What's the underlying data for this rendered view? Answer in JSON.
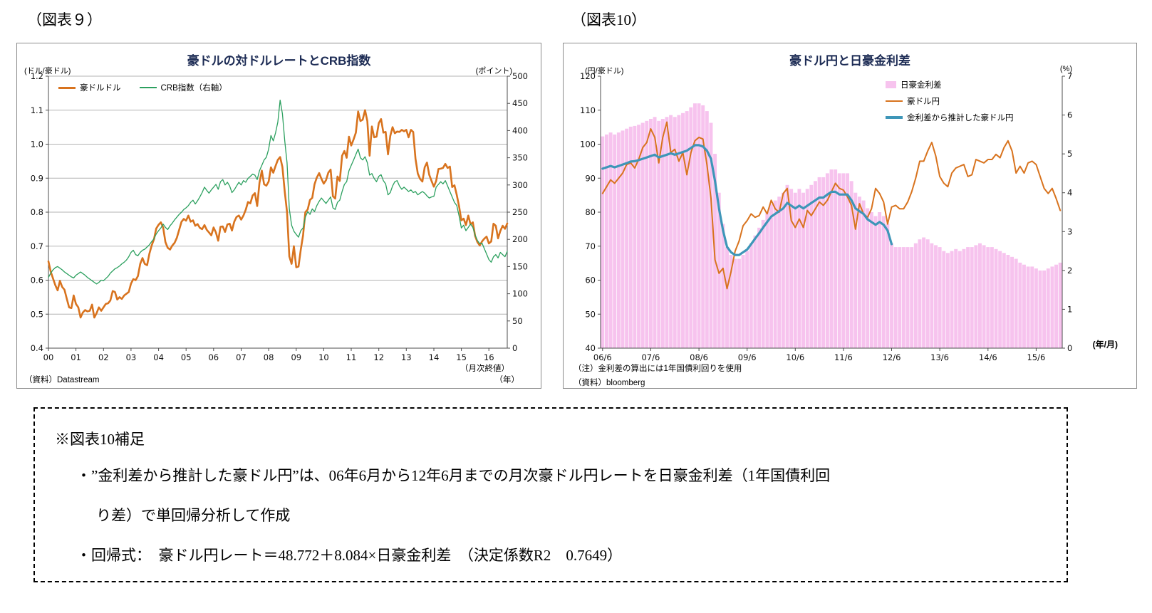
{
  "figures": [
    {
      "label": "（図表９）"
    },
    {
      "label": "（図表10）"
    }
  ],
  "notes_box": {
    "heading": "※図表10補足",
    "bullet1_line1": "・”金利差から推計した豪ドル円”は、06年6月から12年6月までの月次豪ドル円レートを日豪金利差（1年国債利回",
    "bullet1_line2": "り差）で単回帰分析して作成",
    "bullet2": "・回帰式：　豪ドル円レート＝48.772＋8.084×日豪金利差　（決定係数R2　0.7649）"
  },
  "chart_data": [
    {
      "id": "figure9",
      "type": "line",
      "title": "豪ドルの対ドルレートとCRB指数",
      "frequency": "monthly",
      "x_start": "2000/01",
      "x_end": "2016/09",
      "x_tick_labels": [
        "00",
        "01",
        "02",
        "03",
        "04",
        "05",
        "06",
        "07",
        "08",
        "09",
        "10",
        "11",
        "12",
        "13",
        "14",
        "15",
        "16"
      ],
      "x_unit_label": "（年）",
      "note": "（月次終値）",
      "source": "（資料）Datastream",
      "grid": "horizontal",
      "legend_position": "top-left-inside",
      "left_axis": {
        "label": "(ドル/豪ドル)",
        "min": 0.4,
        "max": 1.2,
        "step": 0.1
      },
      "right_axis": {
        "label": "(ポイント)",
        "min": 0,
        "max": 500,
        "step": 50
      },
      "series": [
        {
          "name": "豪ドルドル",
          "axis": "left",
          "color": "#d8731e",
          "width": 2.6,
          "values": [
            0.655,
            0.625,
            0.605,
            0.585,
            0.57,
            0.598,
            0.58,
            0.572,
            0.545,
            0.52,
            0.518,
            0.555,
            0.53,
            0.52,
            0.49,
            0.505,
            0.512,
            0.508,
            0.51,
            0.528,
            0.49,
            0.503,
            0.52,
            0.51,
            0.52,
            0.53,
            0.532,
            0.54,
            0.568,
            0.565,
            0.543,
            0.55,
            0.545,
            0.555,
            0.56,
            0.565,
            0.59,
            0.603,
            0.6,
            0.612,
            0.648,
            0.665,
            0.648,
            0.644,
            0.678,
            0.702,
            0.72,
            0.752,
            0.763,
            0.77,
            0.755,
            0.712,
            0.695,
            0.69,
            0.702,
            0.71,
            0.725,
            0.748,
            0.772,
            0.78,
            0.775,
            0.79,
            0.772,
            0.776,
            0.76,
            0.765,
            0.754,
            0.75,
            0.762,
            0.748,
            0.74,
            0.732,
            0.755,
            0.74,
            0.716,
            0.757,
            0.758,
            0.742,
            0.764,
            0.766,
            0.746,
            0.772,
            0.786,
            0.79,
            0.778,
            0.79,
            0.807,
            0.83,
            0.826,
            0.849,
            0.856,
            0.818,
            0.886,
            0.922,
            0.882,
            0.878,
            0.89,
            0.932,
            0.916,
            0.936,
            0.954,
            0.962,
            0.933,
            0.86,
            0.8,
            0.67,
            0.648,
            0.7,
            0.638,
            0.64,
            0.69,
            0.732,
            0.8,
            0.808,
            0.836,
            0.842,
            0.882,
            0.902,
            0.915,
            0.898,
            0.884,
            0.894,
            0.916,
            0.925,
            0.847,
            0.84,
            0.905,
            0.892,
            0.966,
            0.98,
            0.96,
            1.022,
            0.996,
            1.014,
            1.034,
            1.096,
            1.068,
            1.072,
            1.1,
            1.068,
            0.966,
            1.052,
            1.02,
            1.022,
            1.062,
            1.074,
            1.034,
            1.036,
            0.97,
            1.024,
            1.05,
            1.032,
            1.037,
            1.036,
            1.042,
            1.038,
            1.042,
            1.02,
            1.042,
            1.036,
            0.957,
            0.914,
            0.898,
            0.89,
            0.932,
            0.946,
            0.91,
            0.892,
            0.875,
            0.892,
            0.927,
            0.928,
            0.93,
            0.942,
            0.93,
            0.934,
            0.874,
            0.879,
            0.85,
            0.817,
            0.776,
            0.781,
            0.762,
            0.79,
            0.764,
            0.77,
            0.73,
            0.712,
            0.702,
            0.714,
            0.722,
            0.728,
            0.708,
            0.714,
            0.766,
            0.76,
            0.723,
            0.745,
            0.76,
            0.751,
            0.767
          ]
        },
        {
          "name": "CRB指数（右軸）",
          "axis": "right",
          "color": "#2ca05f",
          "width": 1.3,
          "values": [
            130,
            138,
            144,
            148,
            150,
            147,
            144,
            140,
            137,
            134,
            131,
            129,
            134,
            137,
            140,
            137,
            134,
            130,
            127,
            124,
            121,
            118,
            121,
            125,
            124,
            128,
            132,
            138,
            142,
            146,
            148,
            151,
            155,
            158,
            162,
            168,
            176,
            180,
            172,
            170,
            176,
            180,
            182,
            186,
            190,
            196,
            201,
            210,
            216,
            221,
            228,
            222,
            218,
            225,
            230,
            236,
            241,
            246,
            250,
            255,
            258,
            262,
            268,
            272,
            265,
            271,
            278,
            286,
            296,
            290,
            285,
            291,
            296,
            301,
            292,
            306,
            310,
            300,
            305,
            298,
            286,
            291,
            298,
            305,
            300,
            308,
            305,
            312,
            316,
            320,
            318,
            310,
            326,
            336,
            346,
            351,
            366,
            391,
            381,
            396,
            416,
            456,
            431,
            381,
            341,
            256,
            226,
            215,
            209,
            204,
            216,
            221,
            241,
            251,
            246,
            256,
            251,
            262,
            270,
            276,
            271,
            266,
            272,
            278,
            258,
            255,
            268,
            272,
            288,
            301,
            306,
            326,
            336,
            346,
            356,
            366,
            350,
            346,
            352,
            341,
            318,
            321,
            312,
            306,
            316,
            319,
            308,
            302,
            282,
            286,
            298,
            306,
            308,
            298,
            292,
            296,
            292,
            288,
            291,
            286,
            288,
            282,
            285,
            288,
            285,
            280,
            276,
            278,
            279,
            296,
            301,
            306,
            302,
            308,
            298,
            288,
            278,
            268,
            262,
            243,
            221,
            226,
            216,
            222,
            228,
            222,
            208,
            198,
            192,
            193,
            183,
            173,
            163,
            158,
            168,
            172,
            166,
            176,
            172,
            168,
            178
          ]
        }
      ]
    },
    {
      "id": "figure10",
      "type": "mixed",
      "title": "豪ドル円と日豪金利差",
      "frequency": "monthly",
      "x_start": "2006/06",
      "x_end": "2015/12",
      "x_tick_labels": [
        "06/6",
        "07/6",
        "08/6",
        "09/6",
        "10/6",
        "11/6",
        "12/6",
        "13/6",
        "14/6",
        "15/6"
      ],
      "x_unit_label": "(年/月)",
      "note": "（注）金利差の算出には1年国債利回りを使用",
      "source": "（資料）bloomberg",
      "grid": "none",
      "legend_position": "top-right-inside",
      "left_axis": {
        "label": "(円/豪ドル)",
        "min": 40,
        "max": 120,
        "step": 10
      },
      "right_axis": {
        "label": "(%)",
        "min": 0,
        "max": 7,
        "step": 1
      },
      "series": [
        {
          "name": "日豪金利差",
          "type": "bar",
          "axis": "right",
          "color": "#f7c3ee",
          "values": [
            5.45,
            5.5,
            5.55,
            5.5,
            5.55,
            5.6,
            5.65,
            5.7,
            5.72,
            5.75,
            5.8,
            5.85,
            5.9,
            5.95,
            5.85,
            5.9,
            5.95,
            6.0,
            5.95,
            6.0,
            6.05,
            6.1,
            6.2,
            6.3,
            6.3,
            6.25,
            6.1,
            5.8,
            5.0,
            4.0,
            3.2,
            2.6,
            2.4,
            2.3,
            2.3,
            2.4,
            2.5,
            2.7,
            2.9,
            3.1,
            3.3,
            3.5,
            3.7,
            3.8,
            3.9,
            4.0,
            4.2,
            4.1,
            4.0,
            4.1,
            4.0,
            4.1,
            4.2,
            4.3,
            4.4,
            4.4,
            4.5,
            4.6,
            4.6,
            4.5,
            4.5,
            4.5,
            4.3,
            4.0,
            3.9,
            3.8,
            3.6,
            3.5,
            3.4,
            3.5,
            3.4,
            3.2,
            2.7,
            2.6,
            2.6,
            2.6,
            2.6,
            2.6,
            2.7,
            2.8,
            2.85,
            2.8,
            2.7,
            2.65,
            2.6,
            2.5,
            2.45,
            2.5,
            2.55,
            2.5,
            2.55,
            2.6,
            2.6,
            2.65,
            2.7,
            2.65,
            2.6,
            2.6,
            2.55,
            2.5,
            2.45,
            2.4,
            2.35,
            2.3,
            2.2,
            2.15,
            2.1,
            2.1,
            2.05,
            2.0,
            2.0,
            2.05,
            2.1,
            2.15,
            2.2
          ]
        },
        {
          "name": "豪ドル円",
          "type": "line",
          "axis": "left",
          "color": "#d8731e",
          "width": 2,
          "values": [
            85.5,
            87.5,
            89.5,
            88.5,
            90,
            91.5,
            94,
            94.5,
            93,
            95.5,
            99,
            100.5,
            104.5,
            102,
            94.5,
            102,
            106.5,
            97.5,
            98.5,
            95,
            97.5,
            91,
            97.5,
            101,
            102,
            101.5,
            94,
            84,
            66,
            62,
            63.5,
            57.5,
            62.5,
            68.5,
            71.5,
            76,
            77.5,
            79.5,
            78.5,
            79,
            81.5,
            79.5,
            83.5,
            81,
            80,
            85.5,
            87,
            77.5,
            75.5,
            78,
            75.5,
            80.5,
            79,
            81,
            83,
            82,
            83.5,
            86,
            88.5,
            87,
            86.5,
            84.5,
            82,
            75,
            82.5,
            79.5,
            78.5,
            81,
            87,
            85.5,
            83,
            76.5,
            81.5,
            82,
            81,
            81,
            83,
            86,
            90,
            95,
            95,
            98,
            100.5,
            96.5,
            90.5,
            88.5,
            87.5,
            91.5,
            93,
            93.5,
            94,
            90.5,
            91,
            95.5,
            95,
            94.5,
            95.5,
            95.5,
            97,
            96,
            99,
            101,
            98,
            91.5,
            93.5,
            91.5,
            94.5,
            95,
            94,
            90.5,
            87,
            85.5,
            87,
            84,
            80.5
          ]
        },
        {
          "name": "金利差から推計した豪ドル円",
          "type": "line",
          "axis": "left",
          "color": "#3e96b8",
          "width": 3.2,
          "values": [
            92.8,
            93.2,
            93.6,
            93.2,
            93.6,
            94.0,
            94.4,
            94.9,
            95.0,
            95.3,
            95.7,
            96.1,
            96.5,
            96.9,
            96.1,
            96.5,
            96.9,
            97.3,
            96.9,
            97.3,
            97.7,
            98.1,
            98.9,
            99.7,
            99.7,
            99.3,
            98.1,
            95.7,
            89.2,
            81.1,
            74.6,
            69.8,
            68.2,
            67.4,
            67.4,
            68.2,
            69.0,
            70.6,
            72.2,
            73.8,
            75.5,
            77.1,
            78.7,
            79.5,
            80.3,
            81.1,
            82.7,
            81.9,
            81.1,
            81.9,
            81.1,
            81.9,
            82.7,
            83.5,
            84.3,
            84.3,
            85.2,
            86.0,
            86.0,
            85.2,
            85.2,
            85.2,
            83.5,
            81.1,
            80.3,
            79.5,
            77.9,
            77.1,
            76.3,
            77.1,
            76.3,
            74.6,
            70.6
          ]
        }
      ]
    }
  ]
}
